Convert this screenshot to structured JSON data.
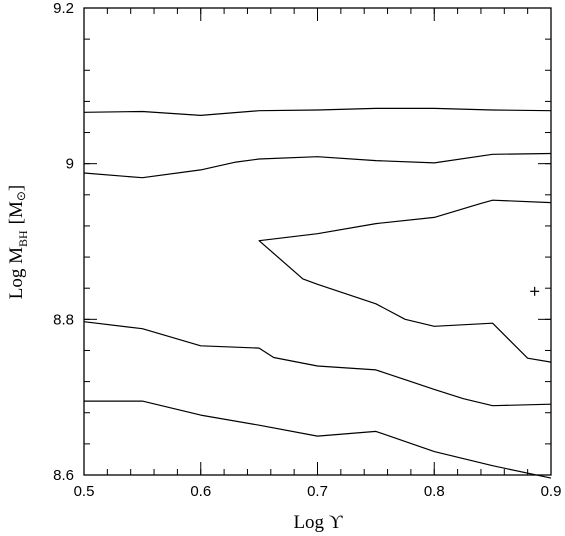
{
  "chart_data": {
    "type": "line",
    "title": "",
    "xlabel": "Log ϒ",
    "ylabel": {
      "prefix": "Log M",
      "subscript": "BH",
      "unit_open": "[M",
      "unit_symbol": "⊙",
      "unit_close": "]"
    },
    "xlim": [
      0.5,
      0.9
    ],
    "ylim": [
      8.6,
      9.2
    ],
    "x_ticks": [
      0.5,
      0.6,
      0.7,
      0.8,
      0.9
    ],
    "y_ticks": [
      8.6,
      8.8,
      9.0,
      9.2
    ],
    "x_tick_labels": [
      "0.5",
      "0.6",
      "0.7",
      "0.8",
      "0.9"
    ],
    "y_tick_labels": [
      "8.6",
      "8.8",
      "9",
      "9.2"
    ],
    "x_minor_step": 0.02,
    "y_minor_step": 0.04,
    "grid": false,
    "legend": "none",
    "series": [
      {
        "x": [
          0.5,
          0.55,
          0.6,
          0.65,
          0.7,
          0.75,
          0.8,
          0.85,
          0.9
        ],
        "y": [
          9.066,
          9.067,
          9.062,
          9.068,
          9.069,
          9.071,
          9.071,
          9.069,
          9.068
        ]
      },
      {
        "x": [
          0.5,
          0.55,
          0.6,
          0.63,
          0.65,
          0.7,
          0.75,
          0.8,
          0.85,
          0.9
        ],
        "y": [
          8.988,
          8.982,
          8.992,
          9.002,
          9.006,
          9.009,
          9.004,
          9.001,
          9.012,
          9.013
        ]
      },
      {
        "x": [
          0.9,
          0.85,
          0.84,
          0.8,
          0.75,
          0.7,
          0.65,
          0.6875,
          0.7,
          0.75,
          0.775,
          0.8,
          0.85,
          0.88,
          0.9
        ],
        "y": [
          8.95,
          8.953,
          8.949,
          8.931,
          8.923,
          8.91,
          8.901,
          8.852,
          8.845,
          8.82,
          8.8,
          8.791,
          8.795,
          8.75,
          8.745
        ]
      },
      {
        "x": [
          0.5,
          0.55,
          0.6,
          0.65,
          0.6625,
          0.7,
          0.75,
          0.8,
          0.825,
          0.85,
          0.9
        ],
        "y": [
          8.797,
          8.788,
          8.766,
          8.763,
          8.751,
          8.74,
          8.735,
          8.71,
          8.698,
          8.689,
          8.691
        ]
      },
      {
        "x": [
          0.5,
          0.55,
          0.6,
          0.65,
          0.7,
          0.75,
          0.8,
          0.85,
          0.9
        ],
        "y": [
          8.695,
          8.695,
          8.677,
          8.664,
          8.65,
          8.656,
          8.63,
          8.612,
          8.596
        ]
      }
    ],
    "annotations": [
      {
        "type": "plus-marker",
        "x": 0.886,
        "y": 8.836
      }
    ]
  }
}
